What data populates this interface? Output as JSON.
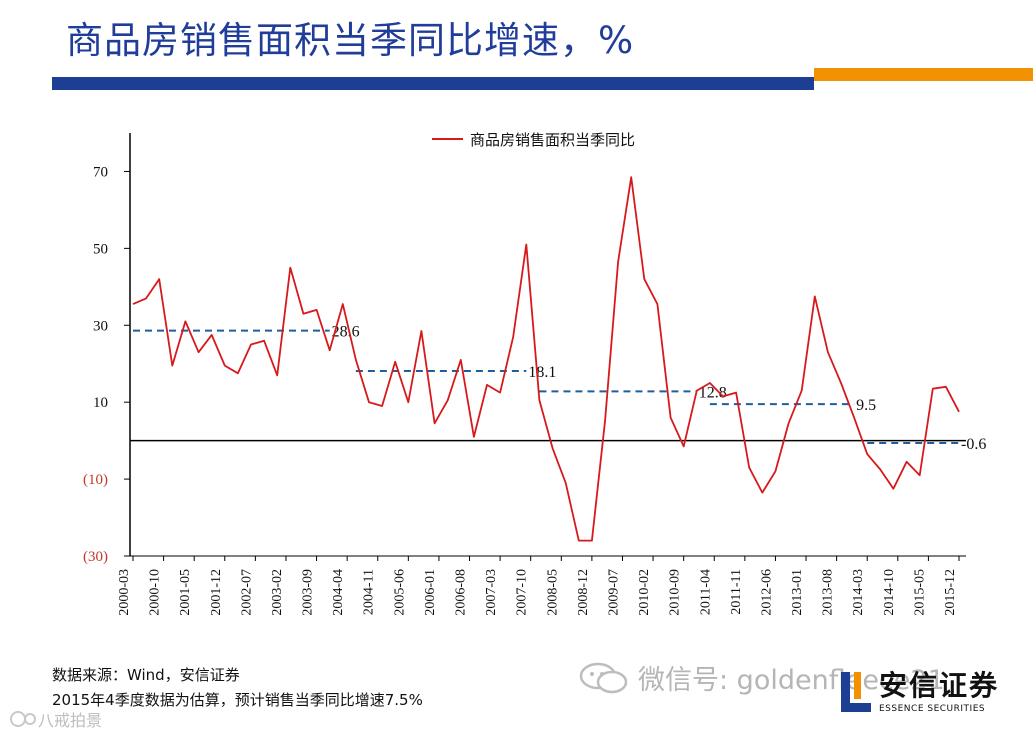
{
  "page": {
    "title": "商品房销售面积当季同比增速，%",
    "source_line": "数据来源：Wind，安信证券",
    "note_line": "2015年4季度数据为估算，预计销售当季同比增速7.5%",
    "wechat_watermark": "微信号: goldenfleece21",
    "corner_watermark": "八戒拍景",
    "logo_cn": "安信证券",
    "logo_en": "ESSENCE SECURITIES",
    "colors": {
      "title": "#1f3d99",
      "band_blue": "#1c3f94",
      "band_orange": "#f39200",
      "line": "#d7191c",
      "reference": "#1f5f9e"
    }
  },
  "chart_data": {
    "type": "line",
    "title": "",
    "xlabel": "",
    "ylabel": "",
    "ylim": [
      -30,
      80
    ],
    "yticks": [
      {
        "value": 70,
        "label": "70",
        "negative": false
      },
      {
        "value": 50,
        "label": "50",
        "negative": false
      },
      {
        "value": 30,
        "label": "30",
        "negative": false
      },
      {
        "value": 10,
        "label": "10",
        "negative": false
      },
      {
        "value": -10,
        "label": "(10)",
        "negative": true
      },
      {
        "value": -30,
        "label": "(30)",
        "negative": true
      }
    ],
    "legend": {
      "label": "商品房销售面积当季同比",
      "position": "top"
    },
    "x": [
      "2000-03",
      "2000-06",
      "2000-09",
      "2000-12",
      "2001-03",
      "2001-06",
      "2001-09",
      "2001-12",
      "2002-03",
      "2002-06",
      "2002-09",
      "2002-12",
      "2003-03",
      "2003-06",
      "2003-09",
      "2003-12",
      "2004-03",
      "2004-06",
      "2004-09",
      "2004-12",
      "2005-03",
      "2005-06",
      "2005-09",
      "2005-12",
      "2006-03",
      "2006-06",
      "2006-09",
      "2006-12",
      "2007-03",
      "2007-06",
      "2007-09",
      "2007-12",
      "2008-03",
      "2008-06",
      "2008-09",
      "2008-12",
      "2009-03",
      "2009-06",
      "2009-09",
      "2009-12",
      "2010-03",
      "2010-06",
      "2010-09",
      "2010-12",
      "2011-03",
      "2011-06",
      "2011-09",
      "2011-12",
      "2012-03",
      "2012-06",
      "2012-09",
      "2012-12",
      "2013-03",
      "2013-06",
      "2013-09",
      "2013-12",
      "2014-03",
      "2014-06",
      "2014-09",
      "2014-12",
      "2015-03",
      "2015-06",
      "2015-09",
      "2015-12"
    ],
    "xtick_labels": [
      "2000-03",
      "2000-10",
      "2001-05",
      "2001-12",
      "2002-07",
      "2003-02",
      "2003-09",
      "2004-04",
      "2004-11",
      "2005-06",
      "2006-01",
      "2006-08",
      "2007-03",
      "2007-10",
      "2008-05",
      "2008-12",
      "2009-07",
      "2010-02",
      "2010-09",
      "2011-04",
      "2011-11",
      "2012-06",
      "2013-01",
      "2013-08",
      "2014-03",
      "2014-10",
      "2015-05",
      "2015-12"
    ],
    "series": [
      {
        "name": "商品房销售面积当季同比",
        "color": "#d7191c",
        "values": [
          35.5,
          37,
          42,
          19.5,
          31,
          23,
          27.5,
          19.5,
          17.5,
          25,
          26,
          17,
          45,
          33,
          34,
          23.5,
          35.5,
          21,
          10,
          9,
          20.5,
          10,
          28.5,
          4.5,
          10.5,
          21,
          1,
          14.5,
          12.5,
          27,
          51,
          10.5,
          -2,
          -11,
          -26,
          -26,
          5,
          46.5,
          68.5,
          42,
          35.5,
          6,
          -1.5,
          13,
          15,
          11.5,
          12.5,
          -7,
          -13.5,
          -8,
          4.5,
          13,
          37.5,
          23,
          15,
          6,
          -3.5,
          -7.5,
          -12.5,
          -5.5,
          -9,
          13.5,
          14,
          7.5
        ]
      }
    ],
    "reference_lines": [
      {
        "label": "28.6",
        "value": 28.6,
        "from": "2000-03",
        "to": "2003-12"
      },
      {
        "label": "18.1",
        "value": 18.1,
        "from": "2004-06",
        "to": "2007-09"
      },
      {
        "label": "12.8",
        "value": 12.8,
        "from": "2007-12",
        "to": "2010-12"
      },
      {
        "label": "9.5",
        "value": 9.5,
        "from": "2011-03",
        "to": "2013-12"
      },
      {
        "label": "-0.6",
        "value": -0.6,
        "from": "2014-03",
        "to": "2015-12"
      }
    ]
  }
}
